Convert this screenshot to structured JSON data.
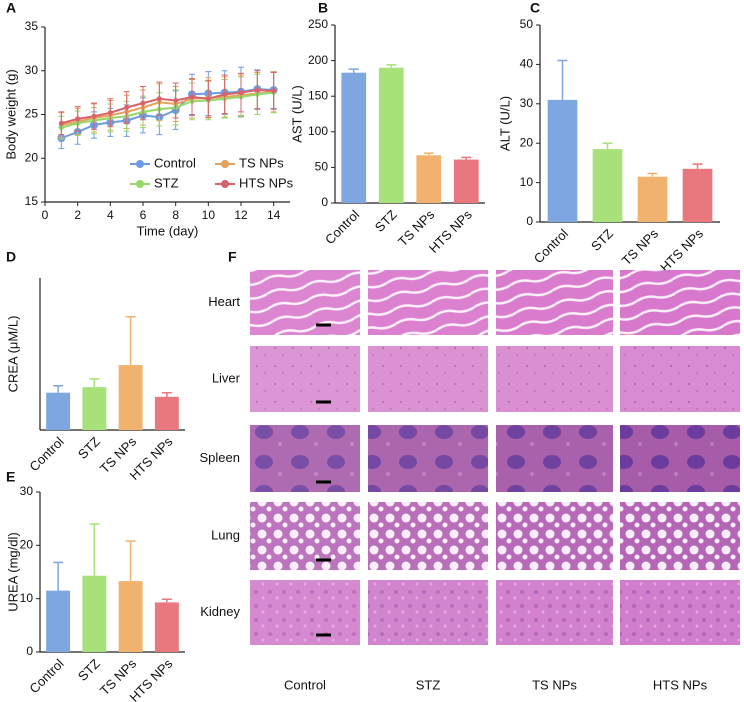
{
  "chart_data": [
    {
      "type": "line",
      "panel": "A",
      "xlabel": "Time (day)",
      "ylabel": "Body weight (g)",
      "x": [
        1,
        2,
        3,
        4,
        5,
        6,
        7,
        8,
        9,
        10,
        11,
        12,
        13,
        14
      ],
      "xlim": [
        0,
        15
      ],
      "xticks": [
        0,
        2,
        4,
        6,
        8,
        10,
        12,
        14
      ],
      "ylim": [
        15,
        35
      ],
      "yticks": [
        15,
        20,
        25,
        30,
        35
      ],
      "legend": "lower right",
      "series": [
        {
          "name": "Control",
          "color": "#6f9be0",
          "values": [
            22.3,
            23.0,
            23.8,
            24.1,
            24.3,
            24.9,
            24.7,
            25.5,
            27.3,
            27.4,
            27.5,
            27.6,
            27.9,
            27.8
          ],
          "errors": [
            1.2,
            1.4,
            1.5,
            1.6,
            1.8,
            2.0,
            2.0,
            2.2,
            2.3,
            2.5,
            2.5,
            2.8,
            2.2,
            2.1
          ]
        },
        {
          "name": "TS NPs",
          "color": "#e3a35c",
          "values": [
            23.8,
            24.2,
            24.6,
            24.9,
            25.3,
            25.8,
            26.4,
            26.2,
            26.8,
            26.9,
            27.0,
            27.2,
            27.4,
            27.6
          ],
          "errors": [
            1.4,
            1.5,
            1.6,
            1.7,
            1.9,
            2.0,
            2.1,
            2.0,
            2.2,
            2.3,
            2.3,
            2.3,
            2.4,
            2.3
          ]
        },
        {
          "name": "STZ",
          "color": "#96d86a",
          "values": [
            23.5,
            24.0,
            24.3,
            24.6,
            24.8,
            25.3,
            25.6,
            25.8,
            26.5,
            26.6,
            26.8,
            27.0,
            27.3,
            27.5
          ],
          "errors": [
            1.3,
            1.4,
            1.5,
            1.6,
            1.7,
            1.8,
            1.9,
            2.0,
            2.1,
            2.2,
            2.2,
            2.3,
            2.3,
            2.3
          ]
        },
        {
          "name": "HTS NPs",
          "color": "#d9626a",
          "values": [
            24.0,
            24.5,
            24.8,
            25.2,
            25.8,
            26.3,
            26.8,
            26.6,
            27.0,
            26.8,
            27.3,
            27.5,
            27.8,
            27.7
          ],
          "errors": [
            1.3,
            1.4,
            1.5,
            1.6,
            1.8,
            1.9,
            1.9,
            2.0,
            2.1,
            2.1,
            2.2,
            2.2,
            2.2,
            2.1
          ]
        }
      ]
    },
    {
      "type": "bar",
      "panel": "B",
      "ylabel": "AST (U/L)",
      "categories": [
        "Control",
        "STZ",
        "TS NPs",
        "HTS NPs"
      ],
      "values": [
        183,
        190,
        67,
        61
      ],
      "errors": [
        5,
        4,
        3,
        3
      ],
      "colors": [
        "#7ea6e0",
        "#a8e07a",
        "#f0b26e",
        "#e8787e"
      ],
      "ylim": [
        0,
        250
      ],
      "yticks": [
        0,
        50,
        100,
        150,
        200,
        250
      ]
    },
    {
      "type": "bar",
      "panel": "C",
      "ylabel": "ALT (U/L)",
      "categories": [
        "Control",
        "STZ",
        "TS NPs",
        "HTS NPs"
      ],
      "values": [
        31,
        18.5,
        11.5,
        13.5
      ],
      "errors": [
        10,
        1.5,
        0.8,
        1.2
      ],
      "colors": [
        "#7ea6e0",
        "#a8e07a",
        "#f0b26e",
        "#e8787e"
      ],
      "ylim": [
        0,
        50
      ],
      "yticks": [
        0,
        10,
        20,
        30,
        40,
        50
      ]
    },
    {
      "type": "bar",
      "panel": "D",
      "ylabel": "CREA (μM/L)",
      "categories": [
        "Control",
        "STZ",
        "TS NPs",
        "HTS NPs"
      ],
      "values": [
        27,
        31,
        47,
        24
      ],
      "errors": [
        5,
        6,
        35,
        3
      ],
      "colors": [
        "#7ea6e0",
        "#a8e07a",
        "#f0b26e",
        "#e8787e"
      ],
      "ylim": [
        0,
        110
      ]
    },
    {
      "type": "bar",
      "panel": "E",
      "ylabel": "UREA (mg/dl)",
      "categories": [
        "Control",
        "STZ",
        "TS NPs",
        "HTS NPs"
      ],
      "values": [
        11.5,
        14.3,
        13.3,
        9.3
      ],
      "errors": [
        5.3,
        9.7,
        7.5,
        0.6
      ],
      "colors": [
        "#7ea6e0",
        "#a8e07a",
        "#f0b26e",
        "#e8787e"
      ],
      "ylim": [
        0,
        30
      ],
      "yticks": [
        0,
        10,
        20,
        30
      ]
    }
  ],
  "histology": {
    "panel": "F",
    "rows": [
      "Heart",
      "Liver",
      "Spleen",
      "Lung",
      "Kidney"
    ],
    "columns": [
      "Control",
      "STZ",
      "TS NPs",
      "HTS NPs"
    ]
  }
}
